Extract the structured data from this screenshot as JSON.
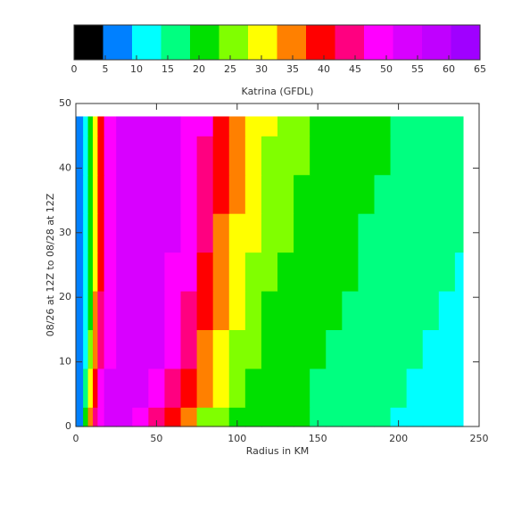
{
  "chart_data": {
    "type": "contour",
    "title": "Katrina (GFDL)",
    "x_label": "Radius in KM",
    "y_label": "08/26 at 12Z to 08/28 at 12Z",
    "xlim": [
      0,
      250
    ],
    "xticks": [
      0,
      50,
      100,
      150,
      200,
      250
    ],
    "ylim": [
      0,
      50
    ],
    "yticks": [
      0,
      10,
      20,
      30,
      40,
      50
    ],
    "x": [
      0,
      3,
      6,
      9,
      12,
      15,
      20,
      30,
      40,
      50,
      60,
      70,
      80,
      90,
      100,
      110,
      120,
      130,
      140,
      150,
      160,
      170,
      180,
      190,
      200,
      210,
      220,
      230,
      240
    ],
    "y": [
      0,
      6,
      12,
      18,
      24,
      30,
      36,
      42,
      48
    ],
    "z": [
      [
        6,
        8,
        20,
        35,
        45,
        50,
        52,
        52,
        50,
        44,
        38,
        33,
        27,
        24,
        21,
        20,
        19.5,
        19,
        18.8,
        17,
        16,
        15,
        14.5,
        14,
        13,
        12.5,
        12,
        11.5,
        11
      ],
      [
        6,
        7,
        15,
        28,
        40,
        47,
        52,
        53,
        53,
        50,
        45,
        40,
        33,
        28,
        24,
        22,
        21,
        20,
        19.5,
        18.5,
        17.5,
        16.5,
        15.5,
        14.5,
        14,
        13.5,
        13,
        12.5,
        12
      ],
      [
        6,
        7,
        12,
        24,
        36,
        45,
        51,
        53,
        53,
        52,
        48,
        43,
        37,
        31,
        27,
        24,
        22,
        21,
        20,
        19.2,
        18.3,
        17.3,
        16.3,
        15.5,
        14.8,
        14.2,
        13.7,
        13.2,
        12.8
      ],
      [
        6,
        7,
        11,
        22,
        33,
        42,
        49,
        53,
        54,
        53,
        50,
        45,
        39,
        33,
        29,
        25.5,
        23,
        21.5,
        20.5,
        19.7,
        18.9,
        18,
        17,
        16.2,
        15.5,
        14.8,
        14.2,
        13.7,
        13.3
      ],
      [
        6,
        7,
        10,
        21,
        32,
        41,
        48,
        53,
        54,
        54,
        51,
        47,
        41,
        35,
        30,
        27,
        24,
        22.5,
        21,
        20.2,
        19.4,
        18.6,
        17.7,
        16.9,
        16.1,
        15.4,
        14.8,
        14.3,
        13.8
      ],
      [
        6,
        7,
        10,
        20,
        31,
        40,
        47,
        53,
        54,
        54,
        52,
        48,
        42,
        36,
        31,
        28,
        25,
        23.5,
        21.8,
        20.8,
        20,
        19.2,
        18.4,
        17.6,
        16.8,
        16,
        15.3,
        14.7,
        14.2
      ],
      [
        6,
        7,
        10,
        19,
        30,
        40,
        47,
        53,
        54,
        54,
        53,
        50,
        44,
        38,
        33,
        29,
        26.5,
        24.5,
        22.8,
        21.5,
        20.5,
        19.7,
        19,
        18.2,
        17.4,
        16.6,
        15.9,
        15.2,
        14.6
      ],
      [
        6,
        7,
        10,
        19,
        30,
        40,
        47,
        53,
        54,
        54,
        53,
        51,
        46,
        39,
        34,
        30.5,
        27.5,
        25.5,
        23.8,
        22.3,
        21,
        20.2,
        19.4,
        18.7,
        18,
        17.3,
        16.6,
        16,
        15.4
      ],
      [
        6,
        7,
        10,
        19,
        30,
        40,
        47,
        53,
        54,
        54,
        53,
        51,
        47,
        41,
        35,
        31,
        28,
        26,
        24.3,
        22.8,
        21.5,
        20.5,
        19.6,
        18.9,
        18.2,
        17.5,
        16.8,
        16.2,
        15.6
      ]
    ],
    "colorbar": {
      "lim": [
        0,
        65
      ],
      "ticks": [
        0,
        5,
        10,
        15,
        20,
        25,
        30,
        35,
        40,
        45,
        50,
        55,
        60,
        65
      ],
      "colors": [
        "#000000",
        "#0080ff",
        "#00ffff",
        "#00ff80",
        "#00e000",
        "#80ff00",
        "#ffff00",
        "#ff8000",
        "#ff0000",
        "#ff0080",
        "#ff00ff",
        "#d800ff",
        "#c000ff",
        "#a000ff"
      ]
    }
  }
}
